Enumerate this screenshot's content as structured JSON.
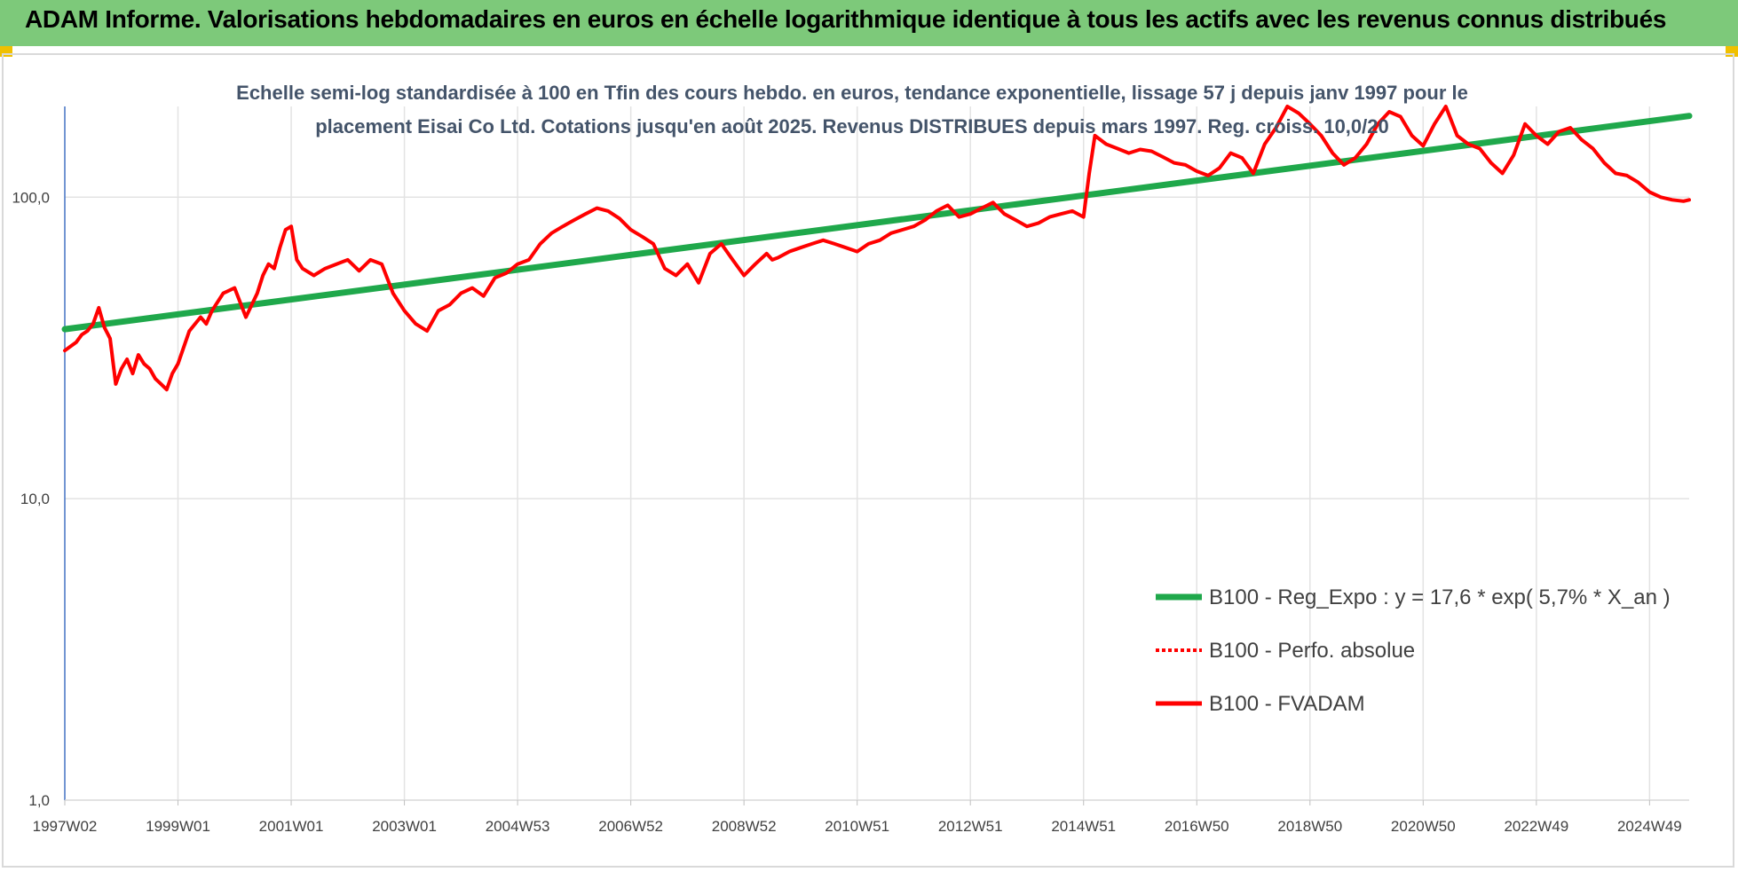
{
  "page": {
    "title": "ADAM Informe. Valorisations hebdomadaires en euros en échelle logarithmique identique à tous les actifs avec les revenus connus distribués"
  },
  "chart_data": {
    "type": "line",
    "title": "Echelle semi-log standardisée à 100 en Tfin des cours hebdo. en euros, tendance exponentielle, lissage 57 j depuis janv 1997 pour le placement Eisai Co Ltd. Cotations jusqu'en août 2025. Revenus DISTRIBUES depuis mars 1997. Reg. croiss. 10,0/20",
    "title_lines": [
      "Echelle semi-log standardisée à 100 en Tfin des cours hebdo. en euros, tendance exponentielle, lissage 57 j depuis janv 1997 pour le",
      "placement Eisai Co Ltd. Cotations jusqu'en août 2025. Revenus DISTRIBUES depuis mars 1997.  Reg. croiss. 10,0/20"
    ],
    "y_scale": "log",
    "ylim": [
      1,
      200
    ],
    "y_ticks": [
      {
        "value": 1,
        "label": "1,0"
      },
      {
        "value": 10,
        "label": "10,0"
      },
      {
        "value": 100,
        "label": "100,0"
      }
    ],
    "xlim": [
      1997.0,
      2025.7
    ],
    "x_ticks": [
      {
        "value": 1997.0,
        "label": "1997W02"
      },
      {
        "value": 1999.0,
        "label": "1999W01"
      },
      {
        "value": 2001.0,
        "label": "2001W01"
      },
      {
        "value": 2003.0,
        "label": "2003W01"
      },
      {
        "value": 2005.0,
        "label": "2004W53"
      },
      {
        "value": 2007.0,
        "label": "2006W52"
      },
      {
        "value": 2009.0,
        "label": "2008W52"
      },
      {
        "value": 2011.0,
        "label": "2010W51"
      },
      {
        "value": 2013.0,
        "label": "2012W51"
      },
      {
        "value": 2015.0,
        "label": "2014W51"
      },
      {
        "value": 2017.0,
        "label": "2016W50"
      },
      {
        "value": 2019.0,
        "label": "2018W50"
      },
      {
        "value": 2021.0,
        "label": "2020W50"
      },
      {
        "value": 2023.0,
        "label": "2022W49"
      },
      {
        "value": 2025.0,
        "label": "2024W49"
      }
    ],
    "grid": true,
    "legend_position": "bottom-right",
    "series": [
      {
        "name": "B100 - Reg_Expo : y = 17,6 * exp( 5,7% *  X_an )",
        "color": "#1fa84b",
        "style": "solid",
        "x": [
          1997.0,
          2025.7
        ],
        "y": [
          36.5,
          186
        ]
      },
      {
        "name": "B100 - Perfo. absolue",
        "color": "#ff0000",
        "style": "dotted",
        "x": [],
        "y": []
      },
      {
        "name": "B100 - FVADAM",
        "color": "#ff0000",
        "style": "solid",
        "x": [
          1997.0,
          1997.1,
          1997.2,
          1997.3,
          1997.4,
          1997.5,
          1997.6,
          1997.7,
          1997.8,
          1997.9,
          1998.0,
          1998.1,
          1998.2,
          1998.3,
          1998.4,
          1998.5,
          1998.6,
          1998.7,
          1998.8,
          1998.9,
          1999.0,
          1999.2,
          1999.4,
          1999.5,
          1999.6,
          1999.8,
          2000.0,
          2000.2,
          2000.4,
          2000.5,
          2000.6,
          2000.7,
          2000.8,
          2000.9,
          2001.0,
          2001.1,
          2001.2,
          2001.4,
          2001.6,
          2001.8,
          2002.0,
          2002.2,
          2002.4,
          2002.6,
          2002.8,
          2003.0,
          2003.2,
          2003.4,
          2003.6,
          2003.8,
          2004.0,
          2004.2,
          2004.4,
          2004.6,
          2004.8,
          2005.0,
          2005.2,
          2005.4,
          2005.6,
          2005.8,
          2006.0,
          2006.2,
          2006.4,
          2006.6,
          2006.8,
          2007.0,
          2007.2,
          2007.4,
          2007.6,
          2007.8,
          2008.0,
          2008.2,
          2008.4,
          2008.6,
          2008.8,
          2009.0,
          2009.2,
          2009.4,
          2009.5,
          2009.6,
          2009.8,
          2010.0,
          2010.2,
          2010.4,
          2010.6,
          2010.8,
          2011.0,
          2011.2,
          2011.4,
          2011.6,
          2011.8,
          2012.0,
          2012.2,
          2012.4,
          2012.6,
          2012.8,
          2013.0,
          2013.2,
          2013.4,
          2013.6,
          2013.8,
          2014.0,
          2014.2,
          2014.4,
          2014.6,
          2014.8,
          2015.0,
          2015.1,
          2015.2,
          2015.4,
          2015.6,
          2015.8,
          2016.0,
          2016.2,
          2016.4,
          2016.6,
          2016.8,
          2017.0,
          2017.2,
          2017.4,
          2017.6,
          2017.8,
          2018.0,
          2018.2,
          2018.4,
          2018.6,
          2018.8,
          2019.0,
          2019.2,
          2019.4,
          2019.6,
          2019.8,
          2020.0,
          2020.2,
          2020.4,
          2020.6,
          2020.8,
          2021.0,
          2021.2,
          2021.4,
          2021.6,
          2021.8,
          2022.0,
          2022.2,
          2022.4,
          2022.6,
          2022.8,
          2023.0,
          2023.2,
          2023.4,
          2023.6,
          2023.8,
          2024.0,
          2024.2,
          2024.4,
          2024.6,
          2024.8,
          2025.0,
          2025.2,
          2025.4,
          2025.6,
          2025.7
        ],
        "y": [
          31,
          32,
          33,
          35,
          36,
          38,
          43,
          37,
          34,
          24,
          27,
          29,
          26,
          30,
          28,
          27,
          25,
          24,
          23,
          26,
          28,
          36,
          40,
          38,
          42,
          48,
          50,
          40,
          48,
          55,
          60,
          58,
          68,
          78,
          80,
          62,
          58,
          55,
          58,
          60,
          62,
          57,
          62,
          60,
          48,
          42,
          38,
          36,
          42,
          44,
          48,
          50,
          47,
          54,
          56,
          60,
          62,
          70,
          76,
          80,
          84,
          88,
          92,
          90,
          85,
          78,
          74,
          70,
          58,
          55,
          60,
          52,
          65,
          70,
          62,
          55,
          60,
          65,
          62,
          63,
          66,
          68,
          70,
          72,
          70,
          68,
          66,
          70,
          72,
          76,
          78,
          80,
          84,
          90,
          94,
          86,
          88,
          92,
          96,
          88,
          84,
          80,
          82,
          86,
          88,
          90,
          86,
          120,
          160,
          150,
          145,
          140,
          144,
          142,
          136,
          130,
          128,
          122,
          118,
          125,
          140,
          135,
          120,
          150,
          170,
          200,
          190,
          175,
          160,
          140,
          128,
          135,
          150,
          175,
          192,
          185,
          160,
          148,
          175,
          200,
          160,
          150,
          145,
          130,
          120,
          138,
          175,
          160,
          150,
          165,
          170,
          155,
          145,
          130,
          120,
          118,
          112,
          104,
          100,
          98,
          97,
          98
        ]
      }
    ]
  }
}
